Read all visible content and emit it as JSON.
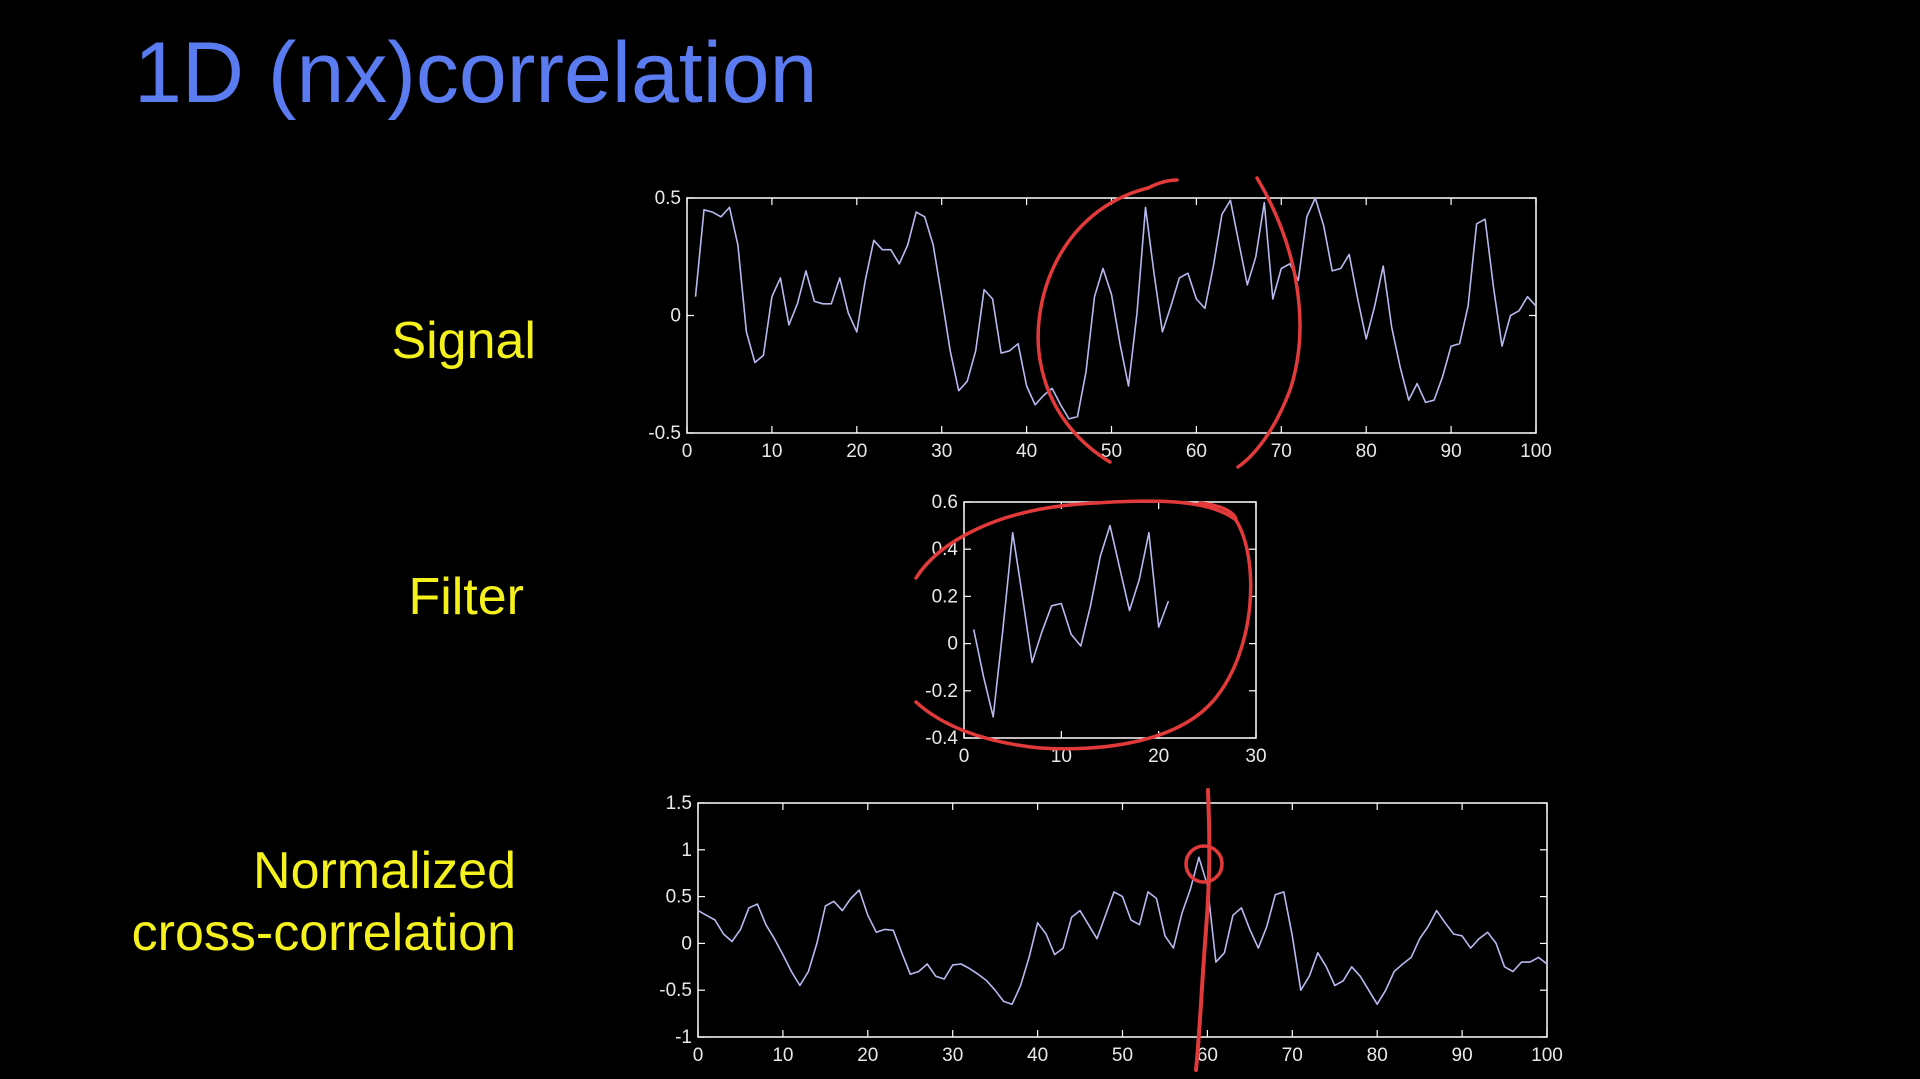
{
  "slide": {
    "title": "1D (nx)correlation",
    "labels": {
      "signal": "Signal",
      "filter": "Filter",
      "ncc_line1": "Normalized",
      "ncc_line2": "cross-correlation"
    }
  },
  "colors": {
    "title": "#5a7cf0",
    "labels": "#f4f11c",
    "trace": "#b7b9ef",
    "annotation": "#e23a3a",
    "axes": "#ffffff",
    "background": "#000000"
  },
  "chart_data": [
    {
      "type": "line",
      "title": "",
      "xlim": [
        0,
        100
      ],
      "ylim": [
        -0.5,
        0.5
      ],
      "xticks": [
        0,
        10,
        20,
        30,
        40,
        50,
        60,
        70,
        80,
        90,
        100
      ],
      "xtick_labels": [
        "0",
        "10",
        "20",
        "30",
        "40",
        "50",
        "60",
        "70",
        "80",
        "90",
        "100"
      ],
      "yticks": [
        -0.5,
        0,
        0.5
      ],
      "ytick_labels": [
        "-0.5",
        "0",
        "0.5"
      ],
      "series": [
        {
          "x": [
            1,
            2,
            3,
            4,
            5,
            6,
            7,
            8,
            9,
            10,
            11,
            12,
            13,
            14,
            15,
            16,
            17,
            18,
            19,
            20,
            21,
            22,
            23,
            24,
            25,
            26,
            27,
            28,
            29,
            30,
            31,
            32,
            33,
            34,
            35,
            36,
            37,
            38,
            39,
            40,
            41,
            42,
            43,
            44,
            45,
            46,
            47,
            48,
            49,
            50,
            51,
            52,
            53,
            54,
            55,
            56,
            57,
            58,
            59,
            60,
            61,
            62,
            63,
            64,
            65,
            66,
            67,
            68,
            69,
            70,
            71,
            72,
            73,
            74,
            75,
            76,
            77,
            78,
            79,
            80,
            81,
            82,
            83,
            84,
            85,
            86,
            87,
            88,
            89,
            90,
            91,
            92,
            93,
            94,
            95,
            96,
            97,
            98,
            99,
            100
          ],
          "y": [
            0.08,
            0.45,
            0.44,
            0.42,
            0.46,
            0.3,
            -0.07,
            -0.2,
            -0.17,
            0.08,
            0.16,
            -0.04,
            0.05,
            0.19,
            0.06,
            0.05,
            0.05,
            0.16,
            0.01,
            -0.07,
            0.15,
            0.32,
            0.28,
            0.28,
            0.22,
            0.3,
            0.44,
            0.42,
            0.3,
            0.08,
            -0.15,
            -0.32,
            -0.28,
            -0.15,
            0.11,
            0.07,
            -0.16,
            -0.15,
            -0.12,
            -0.3,
            -0.38,
            -0.34,
            -0.31,
            -0.38,
            -0.44,
            -0.43,
            -0.24,
            0.08,
            0.2,
            0.09,
            -0.12,
            -0.3,
            0.01,
            0.46,
            0.18,
            -0.07,
            0.04,
            0.16,
            0.18,
            0.07,
            0.03,
            0.21,
            0.43,
            0.49,
            0.31,
            0.13,
            0.25,
            0.48,
            0.07,
            0.2,
            0.22,
            0.15,
            0.42,
            0.5,
            0.38,
            0.19,
            0.2,
            0.26,
            0.07,
            -0.1,
            0.04,
            0.21,
            -0.05,
            -0.22,
            -0.36,
            -0.29,
            -0.37,
            -0.36,
            -0.26,
            -0.13,
            -0.12,
            0.04,
            0.39,
            0.41,
            0.12,
            -0.13,
            0.0,
            0.02,
            0.08,
            0.04
          ]
        }
      ],
      "annotation": "red freehand circle around x 42–71"
    },
    {
      "type": "line",
      "title": "",
      "xlim": [
        0,
        30
      ],
      "ylim": [
        -0.4,
        0.6
      ],
      "xticks": [
        0,
        10,
        20,
        30
      ],
      "xtick_labels": [
        "0",
        "10",
        "20",
        "30"
      ],
      "yticks": [
        -0.4,
        -0.2,
        0,
        0.2,
        0.4,
        0.6
      ],
      "ytick_labels": [
        "-0.4",
        "-0.2",
        "0",
        "0.2",
        "0.4",
        "0.6"
      ],
      "series": [
        {
          "x": [
            1,
            2,
            3,
            4,
            5,
            6,
            7,
            8,
            9,
            10,
            11,
            12,
            13,
            14,
            15,
            16,
            17,
            18,
            19,
            20,
            21
          ],
          "y": [
            0.06,
            -0.14,
            -0.31,
            0.06,
            0.47,
            0.2,
            -0.08,
            0.05,
            0.16,
            0.17,
            0.04,
            -0.01,
            0.16,
            0.37,
            0.5,
            0.32,
            0.14,
            0.27,
            0.47,
            0.07,
            0.18
          ]
        }
      ],
      "annotation": "red freehand circle around the whole filter trace"
    },
    {
      "type": "line",
      "title": "",
      "xlim": [
        0,
        100
      ],
      "ylim": [
        -1,
        1.5
      ],
      "xticks": [
        0,
        10,
        20,
        30,
        40,
        50,
        60,
        70,
        80,
        90,
        100
      ],
      "xtick_labels": [
        "0",
        "10",
        "20",
        "30",
        "40",
        "50",
        "60",
        "70",
        "80",
        "90",
        "100"
      ],
      "yticks": [
        -1,
        -0.5,
        0,
        0.5,
        1,
        1.5
      ],
      "ytick_labels": [
        "-1",
        "-0.5",
        "0",
        "0.5",
        "1",
        "1.5"
      ],
      "series": [
        {
          "x": [
            0,
            1,
            2,
            3,
            4,
            5,
            6,
            7,
            8,
            9,
            10,
            11,
            12,
            13,
            14,
            15,
            16,
            17,
            18,
            19,
            20,
            21,
            22,
            23,
            24,
            25,
            26,
            27,
            28,
            29,
            30,
            31,
            32,
            33,
            34,
            35,
            36,
            37,
            38,
            39,
            40,
            41,
            42,
            43,
            44,
            45,
            46,
            47,
            48,
            49,
            50,
            51,
            52,
            53,
            54,
            55,
            56,
            57,
            58,
            59,
            60,
            61,
            62,
            63,
            64,
            65,
            66,
            67,
            68,
            69,
            70,
            71,
            72,
            73,
            74,
            75,
            76,
            77,
            78,
            79,
            80,
            81,
            82,
            83,
            84,
            85,
            86,
            87,
            88,
            89,
            90,
            91,
            92,
            93,
            94,
            95,
            96,
            97,
            98,
            99,
            100
          ],
          "y": [
            0.35,
            0.3,
            0.25,
            0.1,
            0.02,
            0.15,
            0.38,
            0.42,
            0.2,
            0.05,
            -0.12,
            -0.3,
            -0.45,
            -0.3,
            0.0,
            0.4,
            0.45,
            0.35,
            0.48,
            0.57,
            0.3,
            0.12,
            0.15,
            0.14,
            -0.1,
            -0.33,
            -0.3,
            -0.22,
            -0.35,
            -0.38,
            -0.23,
            -0.22,
            -0.27,
            -0.33,
            -0.4,
            -0.5,
            -0.62,
            -0.65,
            -0.45,
            -0.15,
            0.22,
            0.1,
            -0.12,
            -0.05,
            0.28,
            0.35,
            0.2,
            0.05,
            0.3,
            0.55,
            0.5,
            0.25,
            0.2,
            0.55,
            0.48,
            0.08,
            -0.05,
            0.32,
            0.58,
            0.92,
            0.62,
            -0.2,
            -0.1,
            0.3,
            0.38,
            0.15,
            -0.05,
            0.18,
            0.52,
            0.55,
            0.08,
            -0.5,
            -0.35,
            -0.1,
            -0.25,
            -0.45,
            -0.4,
            -0.25,
            -0.35,
            -0.5,
            -0.65,
            -0.5,
            -0.3,
            -0.22,
            -0.15,
            0.05,
            0.18,
            0.35,
            0.22,
            0.1,
            0.08,
            -0.05,
            0.05,
            0.12,
            0.0,
            -0.25,
            -0.3,
            -0.2,
            -0.2,
            -0.15,
            -0.22
          ],
          "marker": [
            60,
            0.92
          ]
        }
      ],
      "annotation": "red vertical line and small circle at x = 60"
    }
  ]
}
